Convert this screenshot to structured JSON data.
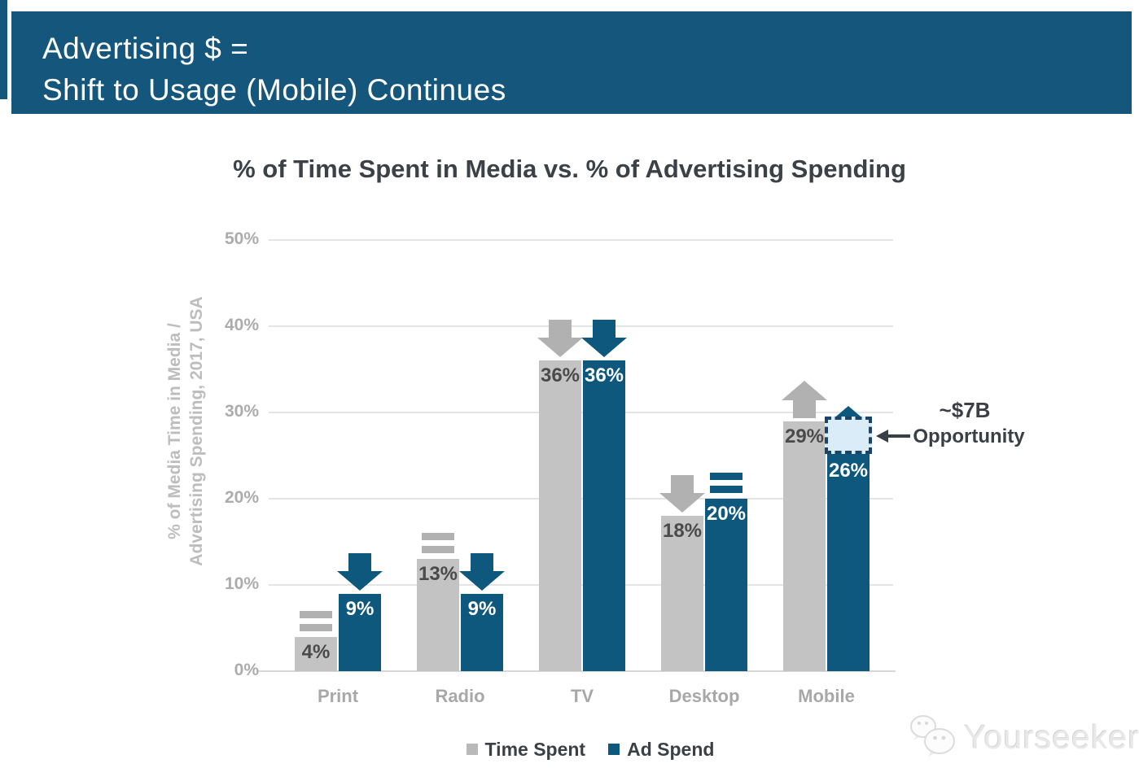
{
  "header": {
    "line1": "Advertising $ =",
    "line2": "Shift to Usage (Mobile) Continues"
  },
  "chart_data": {
    "type": "bar",
    "title": "% of Time Spent in Media vs. % of Advertising Spending",
    "ylabel_line1": "% of Media Time in Media /",
    "ylabel_line2": "Advertising Spending, 2017, USA",
    "categories": [
      "Print",
      "Radio",
      "TV",
      "Desktop",
      "Mobile"
    ],
    "series": [
      {
        "name": "Time Spent",
        "color": "#C3C3C3",
        "label_color": "#4A4A4A",
        "marker_color": "#B1B1B1",
        "values": [
          4,
          13,
          36,
          18,
          29
        ],
        "labels": [
          "4%",
          "13%",
          "36%",
          "18%",
          "29%"
        ],
        "markers": [
          "equals",
          "equals",
          "down",
          "down",
          "up"
        ]
      },
      {
        "name": "Ad Spend",
        "color": "#0E577D",
        "label_color": "#FFFFFF",
        "marker_color": "#0E577D",
        "values": [
          9,
          9,
          36,
          20,
          26
        ],
        "labels": [
          "9%",
          "9%",
          "36%",
          "20%",
          "26%"
        ],
        "markers": [
          "down",
          "down",
          "down",
          "equals",
          "up"
        ]
      }
    ],
    "yticks": [
      {
        "value": 0,
        "label": "0%"
      },
      {
        "value": 10,
        "label": "10%"
      },
      {
        "value": 20,
        "label": "20%"
      },
      {
        "value": 30,
        "label": "30%"
      },
      {
        "value": 40,
        "label": "40%"
      },
      {
        "value": 50,
        "label": "50%"
      }
    ],
    "ylim": [
      0,
      50
    ],
    "grid": true,
    "legend_position": "bottom",
    "annotation": {
      "line1": "~$7B",
      "line2": "Opportunity",
      "gap_category": "Mobile",
      "gap_from_pct": 29,
      "gap_to_pct": 26
    }
  },
  "watermark": {
    "text": "Yourseeker",
    "logo": "wechat-icon"
  },
  "colors": {
    "banner_blue": "#15567D",
    "bar_blue": "#0E577D",
    "bar_gray": "#C3C3C3",
    "opportunity_fill": "#D9ECF8",
    "opportunity_border": "#1C4468",
    "annotation_dark": "#3A3F46"
  }
}
